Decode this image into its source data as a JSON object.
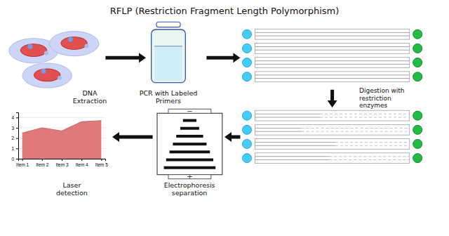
{
  "chart_data": {
    "type": "area",
    "title": "RFLP (Restriction Fragment Length Polymorphism)",
    "annotations": [
      "DNA\nExtraction",
      "PCR with Labeled\nPrimers",
      "Digestion with\nrestriction\nenzymes",
      "Electrophoresis\nseparation",
      "Laser\ndetection",
      "−",
      "+"
    ],
    "categories": [
      "Item 1",
      "Item 2",
      "Item 3",
      "Item 4",
      "Item 5"
    ],
    "values": [
      2.5,
      3.0,
      2.7,
      3.6,
      3.7
    ],
    "color": "#e07878",
    "ylim": [
      0,
      4.5
    ],
    "yticks": [
      0,
      1,
      2,
      3,
      4
    ],
    "grid": true
  }
}
